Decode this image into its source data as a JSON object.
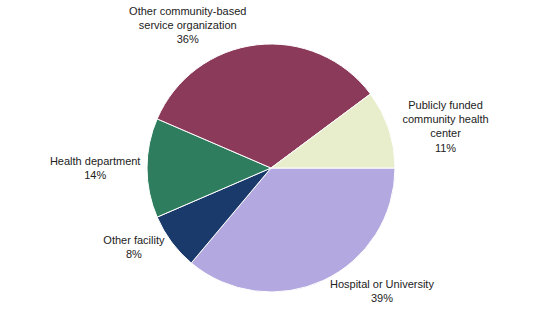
{
  "chart_data": {
    "type": "pie",
    "categories": [
      "Hospital or University",
      "Other facility",
      "Health department",
      "Other community-based\nservice organization",
      "Publicly funded\ncommunity health\ncenter"
    ],
    "values": [
      39,
      8,
      14,
      36,
      11
    ],
    "value_labels": [
      "39%",
      "8%",
      "14%",
      "36%",
      "11%"
    ],
    "colors": [
      "#b3a8e0",
      "#1a3a6b",
      "#2e7d5e",
      "#8b3a5a",
      "#e8eecc"
    ],
    "data_labels": true
  }
}
